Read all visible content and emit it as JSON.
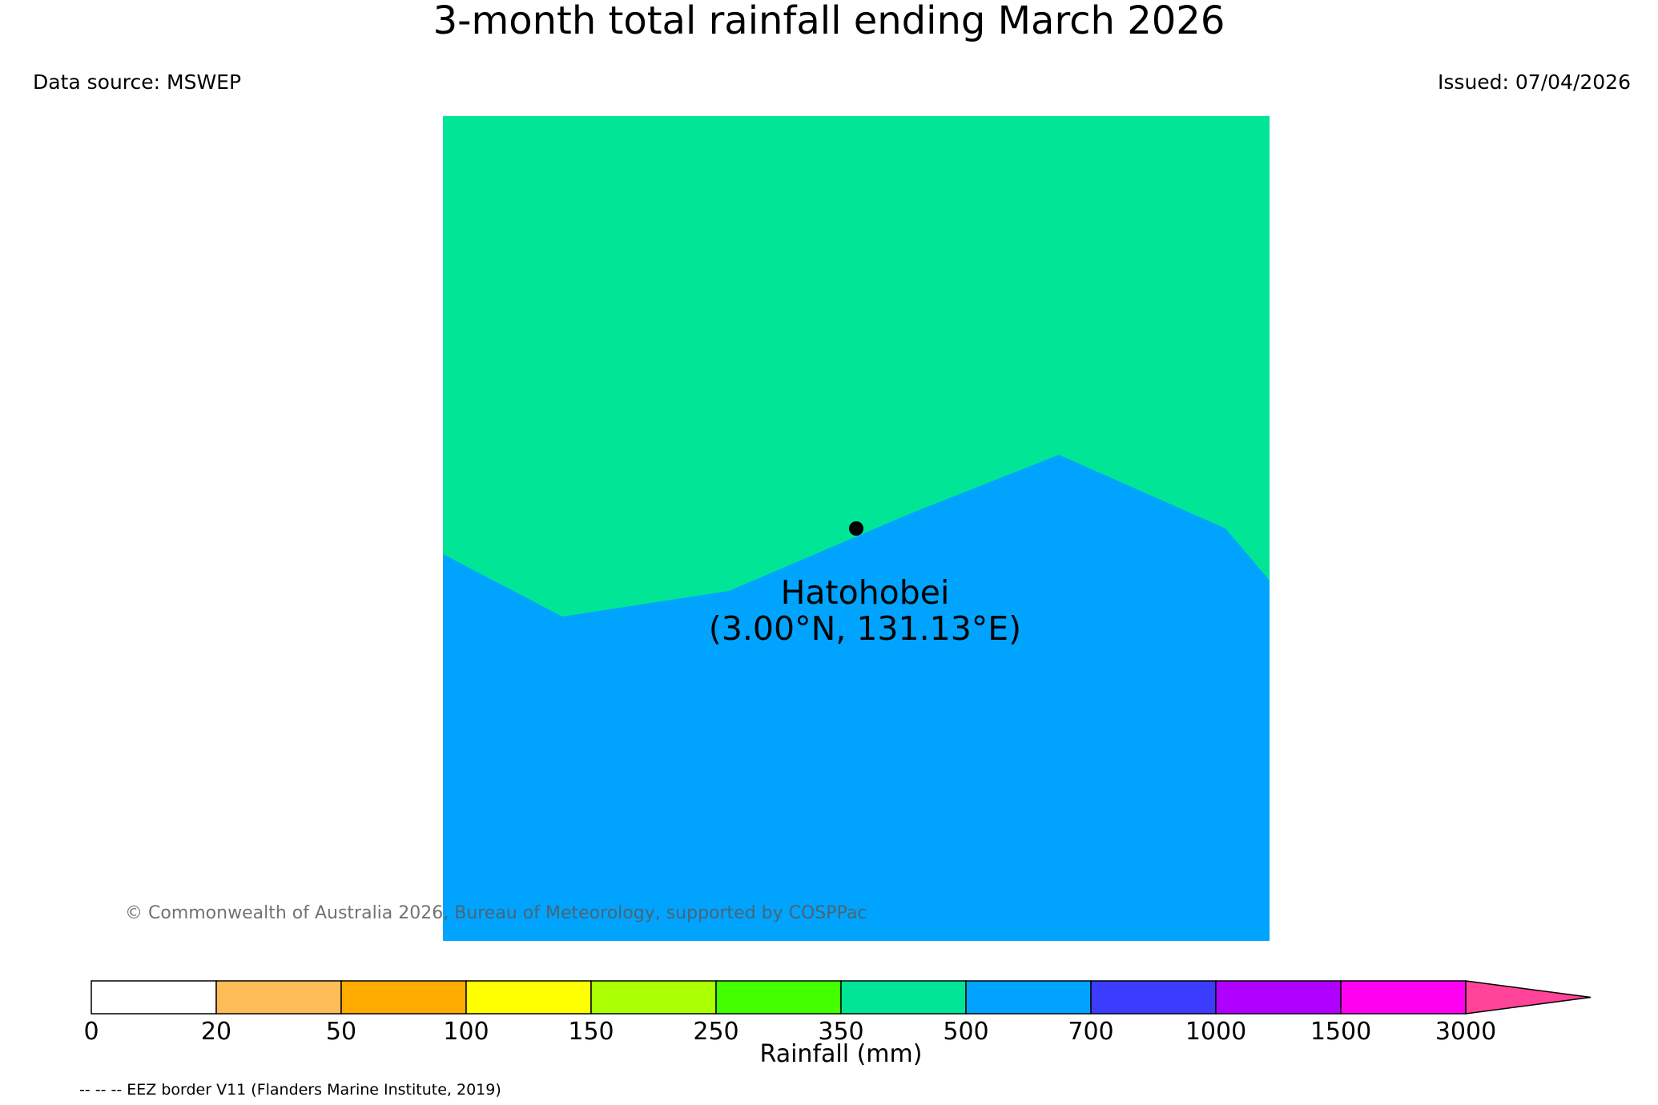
{
  "header": {
    "title": "3-month total rainfall ending March 2026",
    "data_source": "Data source: MSWEP",
    "issued": "Issued: 07/04/2026"
  },
  "location": {
    "name": "Hatohobei",
    "coords": "(3.00°N, 131.13°E)"
  },
  "map": {
    "upper_region_class": "350–500 mm",
    "lower_region_class": "500–700 mm",
    "marker_icon": "location-dot-icon"
  },
  "colorbar": {
    "label": "Rainfall (mm)",
    "ticks": [
      "0",
      "20",
      "50",
      "100",
      "150",
      "250",
      "350",
      "500",
      "700",
      "1000",
      "1500",
      "3000"
    ],
    "colors": [
      "#ffffff",
      "#ffbd5a",
      "#ffab00",
      "#ffff00",
      "#aaff00",
      "#44ff00",
      "#00e696",
      "#00a4ff",
      "#3c3cff",
      "#b000ff",
      "#ff00f0",
      "#ff4499"
    ]
  },
  "footer": {
    "copyright": "© Commonwealth of Australia 2026, Bureau of Meteorology, supported by COSPPac",
    "eez_note": "-- -- -- EEZ border V11 (Flanders Marine Institute, 2019)"
  }
}
